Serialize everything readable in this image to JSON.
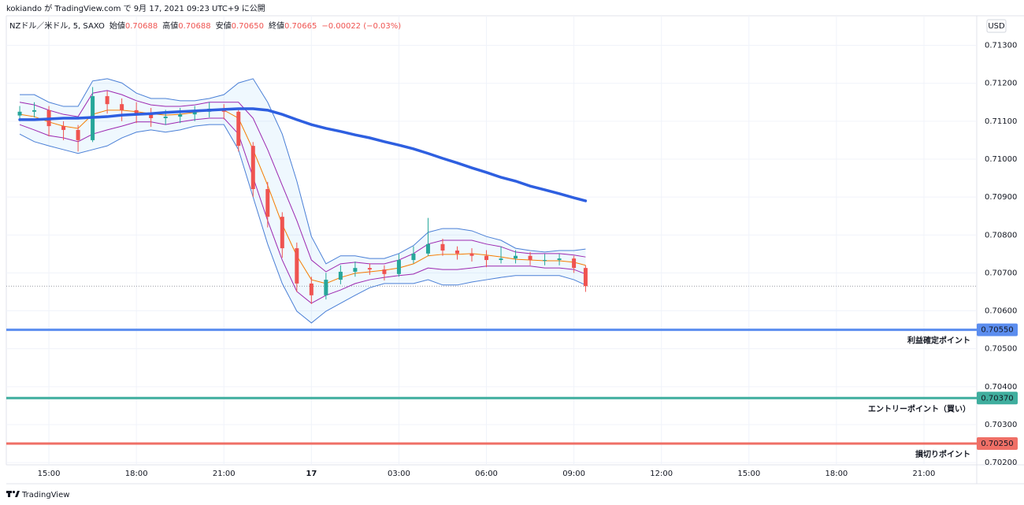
{
  "header": {
    "text": "kokiando が TradingView.com で 9月 17, 2021 09:23 UTC+9 に公開"
  },
  "chart_data": {
    "type": "candlestick",
    "legend_line": {
      "symbol": "NZドル／米ドル, 5, SAXO",
      "fields": [
        {
          "label": "始値",
          "value": "0.70688"
        },
        {
          "label": "高値",
          "value": "0.70688"
        },
        {
          "label": "安値",
          "value": "0.70650"
        },
        {
          "label": "終値",
          "value": "0.70665"
        }
      ],
      "change": "−0.00022 (−0.03%)",
      "value_color": "#ef5350"
    },
    "currency": "USD",
    "x": [
      14,
      14.5,
      15,
      15.5,
      16,
      16.5,
      17,
      17.5,
      18,
      18.5,
      19,
      19.5,
      20,
      20.5,
      21,
      21.5,
      22,
      22.5,
      23,
      23.5,
      24,
      24.5,
      25,
      25.5,
      26,
      26.5,
      27,
      27.5,
      28,
      28.5,
      29,
      29.5,
      30,
      30.5,
      31,
      31.5,
      32,
      32.5,
      33,
      33.4
    ],
    "open": [
      0.71115,
      0.71125,
      0.71129,
      0.71087,
      0.71077,
      0.7105,
      0.71166,
      0.71145,
      0.71129,
      0.71118,
      0.71108,
      0.71112,
      0.71118,
      0.71125,
      0.71133,
      0.71125,
      0.71035,
      0.70921,
      0.70848,
      0.70765,
      0.70672,
      0.70641,
      0.70682,
      0.70703,
      0.70713,
      0.70709,
      0.70697,
      0.70734,
      0.70751,
      0.70776,
      0.70759,
      0.70751,
      0.70745,
      0.70734,
      0.70738,
      0.70745,
      0.70734,
      0.70734,
      0.70738,
      0.70713
    ],
    "high": [
      0.7114,
      0.7115,
      0.7114,
      0.711,
      0.7109,
      0.7119,
      0.7118,
      0.7116,
      0.7115,
      0.71135,
      0.7113,
      0.71135,
      0.7114,
      0.7115,
      0.71145,
      0.71135,
      0.71045,
      0.7094,
      0.7086,
      0.7078,
      0.7069,
      0.707,
      0.7072,
      0.7073,
      0.70725,
      0.7072,
      0.7075,
      0.7077,
      0.70845,
      0.7079,
      0.7077,
      0.70765,
      0.7076,
      0.7077,
      0.7076,
      0.70755,
      0.7075,
      0.7075,
      0.70745,
      0.7072
    ],
    "low": [
      0.711,
      0.7111,
      0.7106,
      0.7105,
      0.7102,
      0.71045,
      0.7112,
      0.711,
      0.71095,
      0.71085,
      0.7109,
      0.71095,
      0.711,
      0.7111,
      0.71105,
      0.7102,
      0.709,
      0.7082,
      0.7074,
      0.7065,
      0.70618,
      0.7063,
      0.7067,
      0.7069,
      0.70695,
      0.7068,
      0.7069,
      0.70725,
      0.70745,
      0.70745,
      0.70735,
      0.7073,
      0.70715,
      0.70725,
      0.70725,
      0.7072,
      0.7072,
      0.7072,
      0.707,
      0.7065
    ],
    "close": [
      0.71125,
      0.71129,
      0.71087,
      0.71077,
      0.7105,
      0.71166,
      0.71145,
      0.71129,
      0.71118,
      0.71108,
      0.71112,
      0.71118,
      0.71125,
      0.71133,
      0.71125,
      0.71035,
      0.70921,
      0.70848,
      0.70765,
      0.70672,
      0.70641,
      0.70682,
      0.70703,
      0.70713,
      0.70709,
      0.70697,
      0.70734,
      0.70751,
      0.70776,
      0.70759,
      0.70751,
      0.70745,
      0.70734,
      0.70738,
      0.70745,
      0.70734,
      0.70734,
      0.70738,
      0.70713,
      0.70665
    ],
    "up_color": "#26a69a",
    "down_color": "#ef5350",
    "bands": {
      "color": "#4a7fd6",
      "fill": "rgba(33,150,243,0.07)",
      "upper": [
        0.7117,
        0.7117,
        0.7115,
        0.71139,
        0.71139,
        0.71206,
        0.71212,
        0.71201,
        0.71174,
        0.7116,
        0.7116,
        0.71154,
        0.71154,
        0.7116,
        0.7117,
        0.71201,
        0.71212,
        0.7115,
        0.71066,
        0.70942,
        0.70796,
        0.70724,
        0.70745,
        0.70745,
        0.70738,
        0.70738,
        0.70751,
        0.70772,
        0.70807,
        0.70817,
        0.70817,
        0.70811,
        0.70796,
        0.70786,
        0.70765,
        0.70759,
        0.70755,
        0.70759,
        0.70759,
        0.70763
      ],
      "lower": [
        0.71066,
        0.71046,
        0.71035,
        0.71025,
        0.71015,
        0.71025,
        0.71035,
        0.71056,
        0.71071,
        0.71077,
        0.71071,
        0.71077,
        0.71087,
        0.71091,
        0.71091,
        0.71025,
        0.709,
        0.70776,
        0.70672,
        0.70599,
        0.70568,
        0.70599,
        0.7062,
        0.70641,
        0.70661,
        0.70672,
        0.70672,
        0.70672,
        0.70682,
        0.70668,
        0.70668,
        0.70676,
        0.70682,
        0.70688,
        0.70693,
        0.70693,
        0.70693,
        0.70693,
        0.70682,
        0.70668
      ]
    },
    "lines": [
      {
        "color": "#9c27b0",
        "width": 1,
        "values": [
          0.7115,
          0.71143,
          0.71129,
          0.71118,
          0.71112,
          0.71174,
          0.71181,
          0.7117,
          0.71154,
          0.71143,
          0.71139,
          0.71139,
          0.71143,
          0.7115,
          0.7115,
          0.7115,
          0.71108,
          0.71025,
          0.70931,
          0.70838,
          0.70734,
          0.70703,
          0.70724,
          0.70728,
          0.70724,
          0.70724,
          0.70734,
          0.70751,
          0.70776,
          0.70786,
          0.70786,
          0.70786,
          0.70776,
          0.70769,
          0.70755,
          0.70751,
          0.70751,
          0.70751,
          0.70747,
          0.70742
        ]
      },
      {
        "color": "#9c27b0",
        "width": 1,
        "values": [
          0.71091,
          0.71077,
          0.71062,
          0.71056,
          0.71046,
          0.71066,
          0.71077,
          0.71087,
          0.71098,
          0.71098,
          0.71091,
          0.71098,
          0.71104,
          0.71108,
          0.71108,
          0.71066,
          0.70952,
          0.70838,
          0.70734,
          0.70651,
          0.7062,
          0.70641,
          0.70655,
          0.70672,
          0.70682,
          0.70688,
          0.70693,
          0.70697,
          0.70713,
          0.70709,
          0.70709,
          0.70713,
          0.70718,
          0.70718,
          0.70718,
          0.70718,
          0.70713,
          0.70713,
          0.70709,
          0.70697
        ]
      },
      {
        "color": "#f57c00",
        "width": 1,
        "values": [
          0.71118,
          0.71112,
          0.71098,
          0.71087,
          0.71081,
          0.71118,
          0.71129,
          0.71129,
          0.71125,
          0.7112,
          0.71116,
          0.71118,
          0.71123,
          0.71129,
          0.71129,
          0.71108,
          0.71025,
          0.70931,
          0.70828,
          0.70745,
          0.70682,
          0.70672,
          0.70688,
          0.70699,
          0.70703,
          0.70707,
          0.70713,
          0.70724,
          0.70745,
          0.70749,
          0.70749,
          0.70751,
          0.70747,
          0.70742,
          0.70736,
          0.70734,
          0.70732,
          0.70732,
          0.70728,
          0.7072
        ]
      },
      {
        "color": "#2e5fe0",
        "width": 3.5,
        "values": [
          0.71104,
          0.71104,
          0.71106,
          0.71108,
          0.71108,
          0.7111,
          0.71112,
          0.71116,
          0.71118,
          0.7112,
          0.71123,
          0.71125,
          0.71127,
          0.71129,
          0.71131,
          0.71133,
          0.71133,
          0.71129,
          0.71118,
          0.71104,
          0.71091,
          0.71081,
          0.71073,
          0.71064,
          0.71056,
          0.71046,
          0.71037,
          0.71027,
          0.71015,
          0.71002,
          0.7099,
          0.70977,
          0.70965,
          0.70952,
          0.70942,
          0.70929,
          0.70919,
          0.70909,
          0.70898,
          0.7089
        ]
      }
    ],
    "price_line": {
      "value": 0.70665,
      "color": "#9598a1"
    },
    "levels": [
      {
        "label": "利益確定ポイント",
        "price": 0.7055,
        "price_label": "0.70550",
        "color": "#5b8def"
      },
      {
        "label": "エントリーポイント（買い）",
        "price": 0.7037,
        "price_label": "0.70370",
        "color": "#3fae9e"
      },
      {
        "label": "損切りポイント",
        "price": 0.7025,
        "price_label": "0.70250",
        "color": "#ef6f66"
      }
    ],
    "xlim": [
      13.54,
      46.81
    ],
    "ylim": [
      0.70194,
      0.71378
    ],
    "xticks": [
      {
        "value": 15,
        "label": "15:00"
      },
      {
        "value": 18,
        "label": "18:00"
      },
      {
        "value": 21,
        "label": "21:00"
      },
      {
        "value": 24,
        "label": "17"
      },
      {
        "value": 27,
        "label": "03:00"
      },
      {
        "value": 30,
        "label": "06:00"
      },
      {
        "value": 33,
        "label": "09:00"
      },
      {
        "value": 36,
        "label": "12:00"
      },
      {
        "value": 39,
        "label": "15:00"
      },
      {
        "value": 42,
        "label": "18:00"
      },
      {
        "value": 45,
        "label": "21:00"
      }
    ],
    "yticks": [
      {
        "value": 0.702,
        "label": "0.70200"
      },
      {
        "value": 0.703,
        "label": "0.70300"
      },
      {
        "value": 0.704,
        "label": "0.70400"
      },
      {
        "value": 0.705,
        "label": "0.70500"
      },
      {
        "value": 0.706,
        "label": "0.70600"
      },
      {
        "value": 0.707,
        "label": "0.70700"
      },
      {
        "value": 0.708,
        "label": "0.70800"
      },
      {
        "value": 0.709,
        "label": "0.70900"
      },
      {
        "value": 0.71,
        "label": "0.71000"
      },
      {
        "value": 0.711,
        "label": "0.71100"
      },
      {
        "value": 0.712,
        "label": "0.71200"
      },
      {
        "value": 0.713,
        "label": "0.71300"
      }
    ],
    "grid": true
  },
  "footer": {
    "brand": "TradingView"
  }
}
